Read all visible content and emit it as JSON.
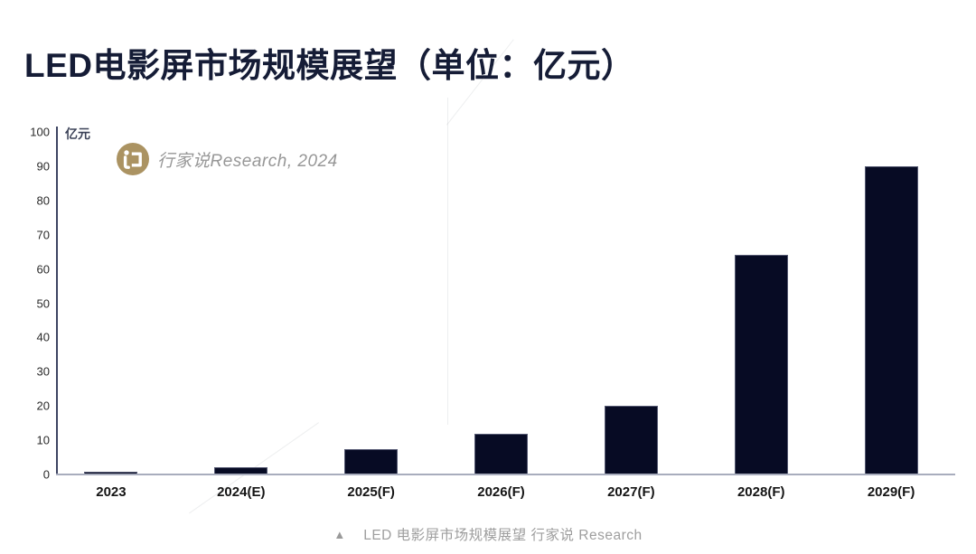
{
  "page_title": "LED电影屏市场规模展望（单位：亿元）",
  "watermark": {
    "logo_icon": "hangjiashuo-logo-icon",
    "logo_color": "#ab9362",
    "text": "行家说Research, 2024"
  },
  "chart_data": {
    "type": "bar",
    "title": "LED电影屏市场规模展望（单位：亿元）",
    "unit_label": "亿元",
    "categories": [
      "2023",
      "2024(E)",
      "2025(F)",
      "2026(F)",
      "2027(F)",
      "2028(F)",
      "2029(F)"
    ],
    "values": [
      0.8,
      2,
      7.4,
      12,
      20,
      64,
      90
    ],
    "xlabel": "",
    "ylabel": "亿元",
    "ylim": [
      0,
      100
    ],
    "yticks": [
      0,
      10,
      20,
      30,
      40,
      50,
      60,
      70,
      80,
      90,
      100
    ],
    "grid": false,
    "legend": "none",
    "bar_color": "#070b24",
    "axis_color": "#3d4462",
    "baseline_color": "#a8adbd"
  },
  "caption": {
    "marker": "▲",
    "text": "LED 电影屏市场规模展望 行家说 Research"
  }
}
